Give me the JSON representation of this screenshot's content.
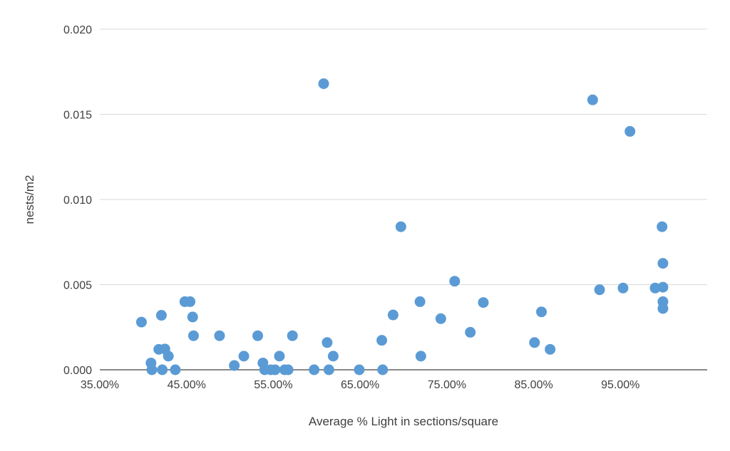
{
  "chart_data": {
    "type": "scatter",
    "title": "",
    "xlabel": "Average % Light in sections/square",
    "ylabel": "nests/m2",
    "xlim": [
      0.35,
      1.05
    ],
    "ylim": [
      0,
      0.02
    ],
    "x_ticks": [
      0.35,
      0.45,
      0.55,
      0.65,
      0.75,
      0.85,
      0.95
    ],
    "x_tick_labels": [
      "35.00%",
      "45.00%",
      "55.00%",
      "65.00%",
      "75.00%",
      "85.00%",
      "95.00%"
    ],
    "y_ticks": [
      0,
      0.005,
      0.01,
      0.015,
      0.02
    ],
    "y_tick_labels": [
      "0.000",
      "0.005",
      "0.010",
      "0.015",
      "0.020"
    ],
    "grid": true,
    "color": "#5b9bd5",
    "series": [
      {
        "name": "nests/m2",
        "x": [
          0.398,
          0.409,
          0.41,
          0.418,
          0.421,
          0.422,
          0.425,
          0.429,
          0.437,
          0.448,
          0.454,
          0.457,
          0.458,
          0.488,
          0.505,
          0.516,
          0.532,
          0.538,
          0.54,
          0.547,
          0.552,
          0.557,
          0.563,
          0.567,
          0.572,
          0.597,
          0.608,
          0.612,
          0.614,
          0.619,
          0.649,
          0.675,
          0.676,
          0.688,
          0.697,
          0.719,
          0.72,
          0.743,
          0.759,
          0.777,
          0.792,
          0.851,
          0.859,
          0.869,
          0.918,
          0.926,
          0.953,
          0.961,
          0.99,
          0.998,
          0.999,
          0.999,
          0.999,
          0.999
        ],
        "y": [
          0.0028,
          0.0004,
          0.0,
          0.0012,
          0.0032,
          0.0,
          0.00122,
          0.0008,
          0.0,
          0.004,
          0.004,
          0.0031,
          0.002,
          0.002,
          0.00025,
          0.0008,
          0.002,
          0.0004,
          0.0,
          0.0,
          0.0,
          0.0008,
          0.0,
          0.0,
          0.002,
          0.0,
          0.0168,
          0.0016,
          0.0,
          0.0008,
          0.0,
          0.00173,
          0.0,
          0.00322,
          0.0084,
          0.004,
          0.0008,
          0.003,
          0.0052,
          0.0022,
          0.00395,
          0.0016,
          0.0034,
          0.0012,
          0.01585,
          0.0047,
          0.0048,
          0.014,
          0.0048,
          0.0084,
          0.00625,
          0.00485,
          0.004,
          0.0036
        ]
      }
    ]
  }
}
